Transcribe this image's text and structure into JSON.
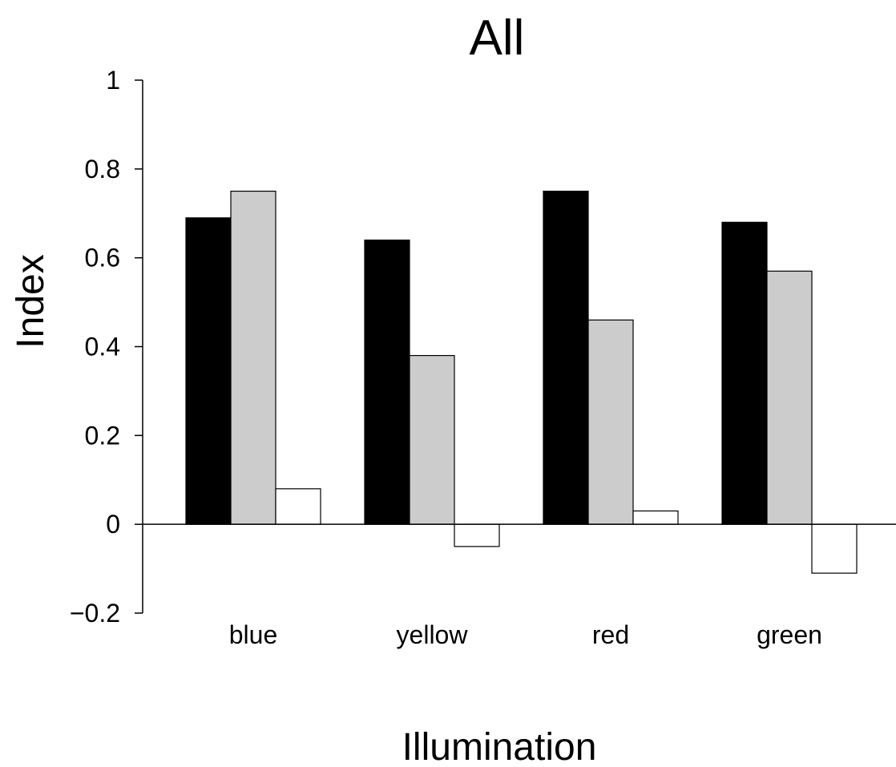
{
  "chart_data": {
    "type": "bar",
    "title": "All",
    "xlabel": "Illumination",
    "ylabel": "Index",
    "categories": [
      "blue",
      "yellow",
      "red",
      "green"
    ],
    "series": [
      {
        "fill": "#000000",
        "values": [
          0.69,
          0.64,
          0.75,
          0.68
        ]
      },
      {
        "fill": "#cccccc",
        "values": [
          0.75,
          0.38,
          0.46,
          0.57
        ]
      },
      {
        "fill": "#ffffff",
        "values": [
          0.08,
          -0.05,
          0.03,
          -0.11
        ]
      }
    ],
    "ylim": [
      -0.2,
      1.0
    ],
    "yticks": [
      -0.2,
      0,
      0.2,
      0.4,
      0.6,
      0.8,
      1
    ],
    "ytick_labels": [
      "−0.2",
      "0",
      "0.2",
      "0.4",
      "0.6",
      "0.8",
      "1"
    ],
    "grid": false,
    "legend": "none"
  }
}
